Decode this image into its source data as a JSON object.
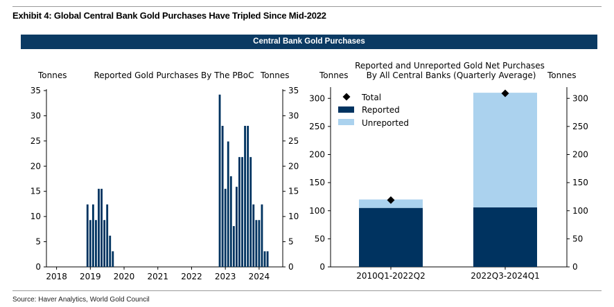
{
  "exhibit_title": "Exhibit 4: Global Central Bank Gold Purchases Have Tripled Since Mid-2022",
  "banner_title": "Central Bank Gold Purchases",
  "source": "Source: Haver Analytics, World Gold Council",
  "colors": {
    "banner": "#0b3a63",
    "reported": "#003360",
    "unreported": "#abd2ee",
    "marker": "#000000"
  },
  "chart_data": [
    {
      "type": "bar",
      "title": "Reported Gold Purchases By The PBoC",
      "ylabel_left": "Tonnes",
      "ylabel_right": "Tonnes",
      "ylim": [
        0,
        35
      ],
      "yticks": [
        "0",
        "5",
        "10",
        "15",
        "20",
        "25",
        "30",
        "35"
      ],
      "xticks": [
        "2018",
        "2019",
        "2020",
        "2021",
        "2022",
        "2023",
        "2024"
      ],
      "x_range": [
        2017.7,
        2024.7
      ],
      "grid": false,
      "bars": [
        {
          "date": "2018-12",
          "value": 12.4
        },
        {
          "date": "2019-01",
          "value": 9.3
        },
        {
          "date": "2019-02",
          "value": 12.4
        },
        {
          "date": "2019-03",
          "value": 9.3
        },
        {
          "date": "2019-04",
          "value": 15.5
        },
        {
          "date": "2019-05",
          "value": 15.5
        },
        {
          "date": "2019-06",
          "value": 9.3
        },
        {
          "date": "2019-07",
          "value": 12.4
        },
        {
          "date": "2019-08",
          "value": 6.2
        },
        {
          "date": "2019-09",
          "value": 3.1
        },
        {
          "date": "2022-11",
          "value": 34.2
        },
        {
          "date": "2022-12",
          "value": 28.0
        },
        {
          "date": "2023-01",
          "value": 15.5
        },
        {
          "date": "2023-02",
          "value": 24.9
        },
        {
          "date": "2023-03",
          "value": 18.0
        },
        {
          "date": "2023-04",
          "value": 8.1
        },
        {
          "date": "2023-05",
          "value": 15.9
        },
        {
          "date": "2023-06",
          "value": 21.8
        },
        {
          "date": "2023-07",
          "value": 21.8
        },
        {
          "date": "2023-08",
          "value": 28.0
        },
        {
          "date": "2023-09",
          "value": 28.0
        },
        {
          "date": "2023-10",
          "value": 21.8
        },
        {
          "date": "2023-11",
          "value": 12.4
        },
        {
          "date": "2023-12",
          "value": 9.3
        },
        {
          "date": "2024-01",
          "value": 9.3
        },
        {
          "date": "2024-02",
          "value": 12.4
        },
        {
          "date": "2024-03",
          "value": 3.1
        },
        {
          "date": "2024-04",
          "value": 3.1
        }
      ]
    },
    {
      "type": "bar",
      "stacked": true,
      "title_line1": "Reported and Unreported Gold Net Purchases",
      "title_line2": "By All Central Banks (Quarterly Average)",
      "ylabel_left": "Tonnes",
      "ylabel_right": "Tonnes",
      "ylim": [
        0,
        320
      ],
      "yticks": [
        "0",
        "50",
        "100",
        "150",
        "200",
        "250",
        "300"
      ],
      "categories": [
        "2010Q1-2022Q2",
        "2022Q3-2024Q1"
      ],
      "legend_position": "top-left",
      "series": [
        {
          "name": "Reported",
          "values": [
            105,
            106
          ]
        },
        {
          "name": "Unreported",
          "values": [
            15,
            204
          ]
        },
        {
          "name": "Total",
          "values": [
            119,
            309
          ]
        }
      ]
    }
  ]
}
